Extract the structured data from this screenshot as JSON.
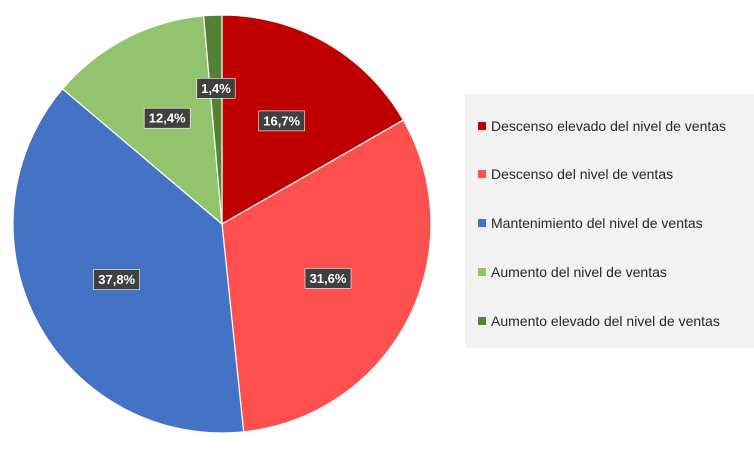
{
  "chart_data": {
    "type": "pie",
    "title": "",
    "categories": [
      "Descenso elevado del nivel de ventas",
      "Descenso del nivel de ventas",
      "Mantenimiento del nivel de ventas",
      "Aumento del nivel de ventas",
      "Aumento elevado del nivel de ventas"
    ],
    "values": [
      16.7,
      31.6,
      37.8,
      12.4,
      1.4
    ],
    "data_labels": [
      "16,7%",
      "31,6%",
      "37,8%",
      "12,4%",
      "1,4%"
    ],
    "colors": [
      "#c00000",
      "#ff5050",
      "#4472c4",
      "#92c46e",
      "#548235"
    ],
    "legend_position": "right",
    "start_angle": "12 o'clock, clockwise"
  }
}
